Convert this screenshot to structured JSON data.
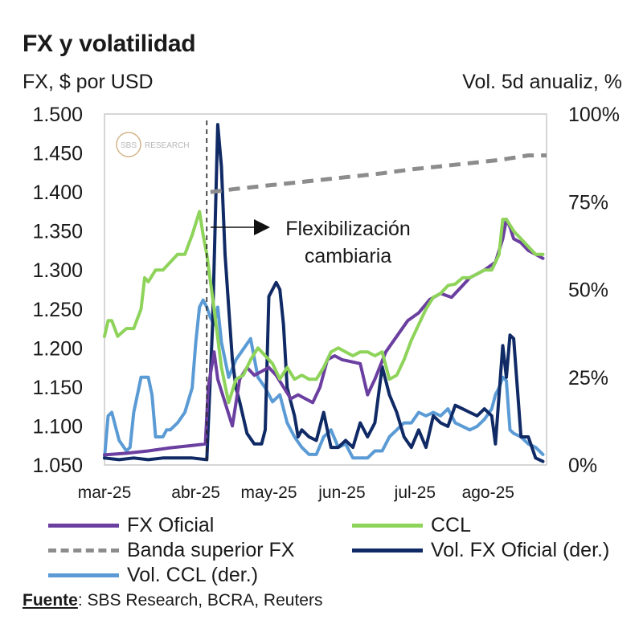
{
  "title": "FX y volatilidad",
  "left_axis_label": "FX, $ por USD",
  "right_axis_label": "Vol. 5d anualiz, %",
  "watermark": {
    "logo_text": "SBS",
    "text": "RESEARCH"
  },
  "annotation": {
    "line1": "Flexibilización",
    "line2": "cambiaria"
  },
  "source": {
    "label": "Fuente",
    "text": ": SBS Research, BCRA, Reuters"
  },
  "colors": {
    "fx_oficial": "#6b3fa0",
    "ccl": "#8ed35a",
    "banda": "#8c8c8c",
    "vol_fx": "#102a66",
    "vol_ccl": "#5b9bd5",
    "frame": "#c8c8c8"
  },
  "chart_data": {
    "type": "line",
    "title": "FX y volatilidad",
    "ylabel": "FX, $ por USD",
    "y2label": "Vol. 5d anualiz, %",
    "x_unit": "month index (0 = mar-25)",
    "xlim": [
      0,
      6.05
    ],
    "ylim": [
      1050,
      1500
    ],
    "y2lim": [
      0,
      100
    ],
    "x_ticks": [
      0,
      1.25,
      2.25,
      3.25,
      4.25,
      5.25
    ],
    "x_tick_labels": [
      "mar-25",
      "abr-25",
      "may-25",
      "jun-25",
      "jul-25",
      "ago-25"
    ],
    "y_ticks": [
      1050,
      1100,
      1150,
      1200,
      1250,
      1300,
      1350,
      1400,
      1450,
      1500
    ],
    "y_tick_labels": [
      "1.050",
      "1.100",
      "1.150",
      "1.200",
      "1.250",
      "1.300",
      "1.350",
      "1.400",
      "1.450",
      "1.500"
    ],
    "y2_ticks": [
      0,
      25,
      50,
      75,
      100
    ],
    "y2_tick_labels": [
      "0%",
      "25%",
      "50%",
      "75%",
      "100%"
    ],
    "event_line": {
      "x": 1.4,
      "label": "Flexibilización cambiaria"
    },
    "series": [
      {
        "name": "FX Oficial",
        "axis": "left",
        "style": "solid",
        "x": [
          0,
          0.3,
          0.6,
          0.9,
          1.2,
          1.38,
          1.42,
          1.5,
          1.55,
          1.65,
          1.75,
          1.85,
          1.95,
          2.05,
          2.15,
          2.25,
          2.35,
          2.45,
          2.55,
          2.65,
          2.75,
          2.85,
          2.95,
          3.05,
          3.15,
          3.25,
          3.35,
          3.5,
          3.6,
          3.7,
          3.85,
          4.0,
          4.15,
          4.3,
          4.45,
          4.6,
          4.75,
          4.9,
          5.0,
          5.1,
          5.2,
          5.35,
          5.45,
          5.5,
          5.55,
          5.6,
          5.7,
          5.8,
          5.9,
          6.0
        ],
        "values": [
          1063,
          1065,
          1068,
          1072,
          1075,
          1077,
          1150,
          1195,
          1160,
          1130,
          1100,
          1160,
          1175,
          1165,
          1170,
          1175,
          1165,
          1150,
          1135,
          1140,
          1135,
          1130,
          1150,
          1185,
          1190,
          1185,
          1183,
          1180,
          1140,
          1160,
          1195,
          1215,
          1235,
          1245,
          1262,
          1270,
          1265,
          1280,
          1290,
          1295,
          1300,
          1310,
          1340,
          1365,
          1355,
          1340,
          1335,
          1325,
          1320,
          1315
        ]
      },
      {
        "name": "CCL",
        "axis": "left",
        "style": "solid",
        "x": [
          0,
          0.05,
          0.1,
          0.18,
          0.3,
          0.4,
          0.5,
          0.55,
          0.6,
          0.7,
          0.8,
          0.9,
          1.0,
          1.1,
          1.2,
          1.3,
          1.35,
          1.4,
          1.5,
          1.6,
          1.7,
          1.8,
          1.9,
          2.0,
          2.1,
          2.2,
          2.3,
          2.4,
          2.5,
          2.6,
          2.7,
          2.8,
          2.9,
          3.0,
          3.1,
          3.2,
          3.3,
          3.4,
          3.5,
          3.6,
          3.7,
          3.8,
          3.9,
          4.0,
          4.1,
          4.2,
          4.3,
          4.4,
          4.5,
          4.6,
          4.7,
          4.8,
          4.9,
          5.0,
          5.1,
          5.2,
          5.3,
          5.35,
          5.4,
          5.45,
          5.5,
          5.6,
          5.7,
          5.8,
          5.9,
          6.0
        ],
        "values": [
          1215,
          1235,
          1235,
          1215,
          1225,
          1225,
          1250,
          1290,
          1285,
          1300,
          1300,
          1310,
          1320,
          1320,
          1345,
          1375,
          1345,
          1320,
          1250,
          1175,
          1130,
          1160,
          1165,
          1185,
          1200,
          1190,
          1180,
          1160,
          1175,
          1160,
          1165,
          1160,
          1160,
          1175,
          1195,
          1200,
          1195,
          1190,
          1195,
          1195,
          1190,
          1195,
          1160,
          1165,
          1185,
          1210,
          1230,
          1250,
          1265,
          1270,
          1280,
          1282,
          1290,
          1290,
          1295,
          1300,
          1300,
          1310,
          1320,
          1365,
          1365,
          1350,
          1340,
          1330,
          1320,
          1320
        ]
      },
      {
        "name": "Banda superior FX",
        "axis": "left",
        "style": "dashed",
        "x": [
          1.45,
          1.8,
          2.2,
          2.6,
          3.0,
          3.4,
          3.8,
          4.2,
          4.6,
          5.0,
          5.4,
          5.8,
          6.05
        ],
        "values": [
          1400,
          1404,
          1408,
          1412,
          1416,
          1420,
          1424,
          1429,
          1433,
          1437,
          1441,
          1447,
          1447
        ]
      },
      {
        "name": "Vol. FX Oficial (der.)",
        "axis": "right",
        "style": "solid",
        "x": [
          0,
          0.2,
          0.4,
          0.6,
          0.8,
          1.0,
          1.2,
          1.4,
          1.48,
          1.55,
          1.6,
          1.65,
          1.7,
          1.75,
          1.8,
          1.85,
          1.95,
          2.05,
          2.15,
          2.2,
          2.25,
          2.35,
          2.4,
          2.45,
          2.5,
          2.55,
          2.6,
          2.65,
          2.7,
          2.8,
          2.9,
          3.0,
          3.1,
          3.2,
          3.3,
          3.4,
          3.5,
          3.6,
          3.7,
          3.8,
          3.9,
          4.0,
          4.1,
          4.2,
          4.3,
          4.4,
          4.5,
          4.6,
          4.7,
          4.8,
          4.9,
          5.0,
          5.1,
          5.2,
          5.3,
          5.35,
          5.45,
          5.5,
          5.55,
          5.6,
          5.7,
          5.8,
          5.9,
          6.0
        ],
        "values": [
          2,
          1.5,
          2,
          1.5,
          2,
          2,
          2,
          1.5,
          40,
          97,
          85,
          60,
          45,
          30,
          22,
          18,
          9,
          6,
          6,
          10,
          48,
          52,
          50,
          40,
          22,
          18,
          14,
          8,
          10,
          8,
          7,
          15,
          5,
          5,
          7,
          5,
          12,
          8,
          12,
          28,
          20,
          15,
          8,
          5,
          10,
          5,
          14,
          12,
          11,
          17,
          16,
          15,
          14,
          16,
          14,
          6,
          34,
          25,
          37,
          36,
          8,
          8,
          2,
          1
        ]
      },
      {
        "name": "Vol. CCL (der.)",
        "axis": "right",
        "style": "solid",
        "x": [
          0,
          0.05,
          0.1,
          0.2,
          0.3,
          0.35,
          0.4,
          0.5,
          0.55,
          0.6,
          0.65,
          0.7,
          0.8,
          0.85,
          0.9,
          1.0,
          1.1,
          1.2,
          1.25,
          1.3,
          1.35,
          1.4,
          1.45,
          1.5,
          1.55,
          1.6,
          1.65,
          1.7,
          1.8,
          1.9,
          2.0,
          2.1,
          2.2,
          2.3,
          2.4,
          2.5,
          2.6,
          2.7,
          2.8,
          2.9,
          3.0,
          3.1,
          3.2,
          3.3,
          3.4,
          3.5,
          3.6,
          3.7,
          3.8,
          3.9,
          4.0,
          4.1,
          4.2,
          4.3,
          4.4,
          4.5,
          4.6,
          4.7,
          4.8,
          4.9,
          5.0,
          5.1,
          5.2,
          5.3,
          5.35,
          5.4,
          5.45,
          5.5,
          5.55,
          5.6,
          5.7,
          5.8,
          5.9,
          6.0
        ],
        "values": [
          2,
          14,
          15,
          7,
          4,
          5,
          15,
          25,
          25,
          25,
          20,
          8,
          8,
          10,
          10,
          12,
          15,
          22,
          35,
          45,
          47,
          45,
          42,
          40,
          45,
          35,
          30,
          25,
          30,
          33,
          36,
          25,
          22,
          18,
          20,
          12,
          8,
          5,
          3,
          3,
          8,
          10,
          5,
          6,
          2,
          2,
          2,
          4,
          4,
          8,
          10,
          12,
          12,
          15,
          14,
          15,
          14,
          16,
          12,
          11,
          10,
          11,
          13,
          16,
          20,
          22,
          25,
          24,
          10,
          9,
          8,
          6,
          5,
          3
        ]
      }
    ]
  }
}
